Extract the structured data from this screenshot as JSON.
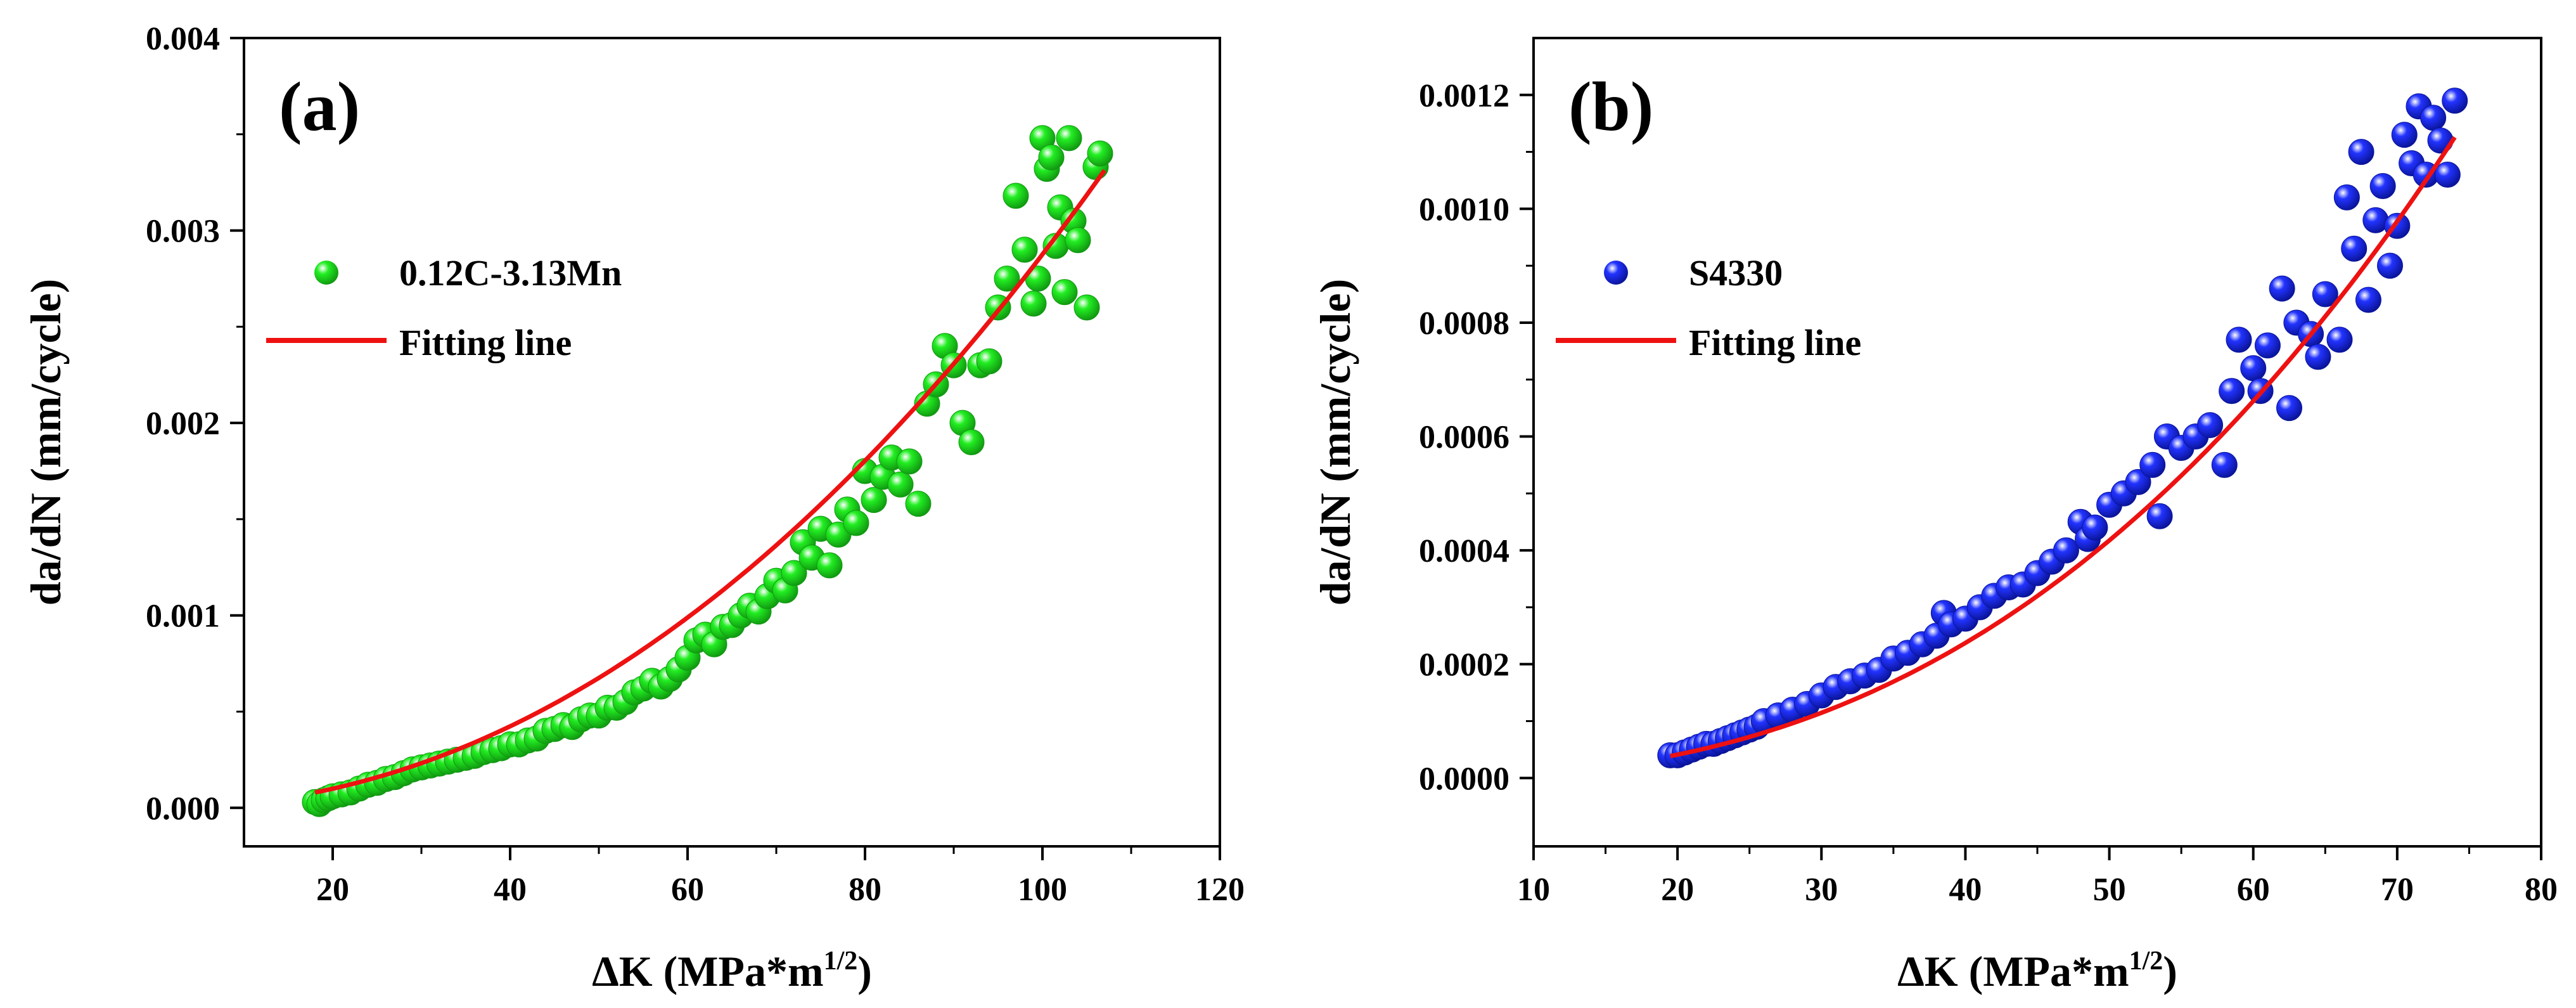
{
  "chart_data": [
    {
      "type": "scatter",
      "panel_label": "(a)",
      "xlabel": "ΔK (MPa*m",
      "xlabel_sup": "1/2",
      "xlabel_close": ")",
      "ylabel": "da/dN (mm/cycle)",
      "xlim": [
        10,
        120
      ],
      "ylim": [
        -0.0002,
        0.004
      ],
      "xticks": [
        20,
        40,
        60,
        80,
        100,
        120
      ],
      "xtick_labels": [
        "20",
        "40",
        "60",
        "80",
        "100",
        "120"
      ],
      "yticks": [
        0,
        0.001,
        0.002,
        0.003,
        0.004
      ],
      "ytick_labels": [
        "0.000",
        "0.001",
        "0.002",
        "0.003",
        "0.004"
      ],
      "legend": {
        "placement": "upper-left",
        "scatter_label": "0.12C-3.13Mn",
        "line_label": "Fitting line"
      },
      "colors": {
        "points": "#22ee22",
        "points_dark": "#119911",
        "fit": "#ee1111"
      },
      "fit": {
        "C": 1.9e-07,
        "m": 2.09,
        "x_range": [
          18,
          107
        ]
      },
      "series": [
        {
          "name": "0.12C-3.13Mn",
          "x": [
            18.0,
            18.5,
            19.0,
            19.5,
            20.0,
            21.0,
            22.0,
            23.0,
            24.0,
            25.0,
            26.0,
            27.0,
            28.0,
            29.0,
            30.0,
            31.0,
            32.0,
            33.0,
            34.0,
            35.0,
            36.0,
            37.0,
            38.0,
            39.0,
            40.0,
            41.0,
            42.0,
            43.0,
            44.0,
            45.0,
            46.0,
            47.0,
            48.0,
            49.0,
            50.0,
            51.0,
            52.0,
            53.0,
            54.0,
            55.0,
            56.0,
            57.0,
            58.0,
            59.0,
            60.0,
            61.0,
            62.0,
            63.0,
            64.0,
            65.0,
            66.0,
            67.0,
            68.0,
            69.0,
            70.0,
            71.0,
            72.0,
            73.0,
            74.0,
            75.0,
            76.0,
            77.0,
            78.0,
            79.0,
            80.0,
            81.0,
            82.0,
            83.0,
            84.0,
            85.0,
            86.0,
            87.0,
            88.0,
            89.0,
            90.0,
            91.0,
            92.0,
            93.0,
            94.0,
            95.0,
            96.0,
            97.0,
            98.0,
            99.0,
            99.5,
            100.0,
            100.5,
            101.0,
            101.5,
            102.0,
            102.5,
            103.0,
            103.5,
            104.0,
            105.0,
            106.0,
            106.5
          ],
          "y": [
            3e-05,
            2e-05,
            4e-05,
            5e-05,
            6e-05,
            7e-05,
            8e-05,
            0.0001,
            0.00012,
            0.00013,
            0.00015,
            0.00016,
            0.00018,
            0.0002,
            0.00021,
            0.00022,
            0.00023,
            0.00024,
            0.00025,
            0.00026,
            0.00027,
            0.00029,
            0.0003,
            0.00031,
            0.00033,
            0.00033,
            0.00035,
            0.00036,
            0.0004,
            0.00041,
            0.00043,
            0.00042,
            0.00046,
            0.00048,
            0.00048,
            0.00052,
            0.00052,
            0.00055,
            0.0006,
            0.00062,
            0.00066,
            0.00063,
            0.00067,
            0.00072,
            0.00078,
            0.00087,
            0.0009,
            0.00085,
            0.00094,
            0.00095,
            0.001,
            0.00105,
            0.00102,
            0.0011,
            0.00118,
            0.00113,
            0.00122,
            0.00138,
            0.0013,
            0.00145,
            0.00126,
            0.00142,
            0.00155,
            0.00148,
            0.00175,
            0.0016,
            0.00172,
            0.00182,
            0.00168,
            0.0018,
            0.00158,
            0.0021,
            0.0022,
            0.0024,
            0.0023,
            0.002,
            0.0019,
            0.0023,
            0.00232,
            0.0026,
            0.00275,
            0.00318,
            0.0029,
            0.00262,
            0.00275,
            0.00348,
            0.00332,
            0.00338,
            0.00292,
            0.00312,
            0.00268,
            0.00348,
            0.00305,
            0.00295,
            0.0026,
            0.00333,
            0.0034
          ]
        }
      ]
    },
    {
      "type": "scatter",
      "panel_label": "(b)",
      "xlabel": "ΔK (MPa*m",
      "xlabel_sup": "1/2",
      "xlabel_close": ")",
      "ylabel": "da/dN (mm/cycle)",
      "xlim": [
        10,
        80
      ],
      "ylim": [
        -0.00012,
        0.0013
      ],
      "xticks": [
        10,
        20,
        30,
        40,
        50,
        60,
        70,
        80
      ],
      "xtick_labels": [
        "10",
        "20",
        "30",
        "40",
        "50",
        "60",
        "70",
        "80"
      ],
      "yticks": [
        0,
        0.0002,
        0.0004,
        0.0006,
        0.0008,
        0.001,
        0.0012
      ],
      "ytick_labels": [
        "0.0000",
        "0.0002",
        "0.0004",
        "0.0006",
        "0.0008",
        "0.0010",
        "0.0012"
      ],
      "legend": {
        "placement": "upper-left",
        "scatter_label": "S4330",
        "line_label": "Fitting line"
      },
      "colors": {
        "points": "#2233ff",
        "points_dark": "#0a1499",
        "fit": "#ee1111"
      },
      "fit": {
        "C": 2.1e-08,
        "m": 2.53,
        "x_range": [
          19.5,
          74
        ]
      },
      "series": [
        {
          "name": "S4330",
          "x": [
            19.5,
            20.0,
            20.5,
            21.0,
            21.5,
            22.0,
            22.5,
            23.0,
            23.5,
            24.0,
            24.5,
            25.0,
            25.5,
            26.0,
            27.0,
            28.0,
            29.0,
            30.0,
            31.0,
            32.0,
            33.0,
            34.0,
            35.0,
            36.0,
            37.0,
            38.0,
            38.5,
            39.0,
            40.0,
            41.0,
            42.0,
            43.0,
            44.0,
            45.0,
            46.0,
            47.0,
            48.0,
            48.5,
            49.0,
            50.0,
            51.0,
            52.0,
            53.0,
            53.5,
            54.0,
            55.0,
            56.0,
            57.0,
            58.0,
            58.5,
            59.0,
            60.0,
            60.5,
            61.0,
            62.0,
            62.5,
            63.0,
            64.0,
            64.5,
            65.0,
            66.0,
            66.5,
            67.0,
            67.5,
            68.0,
            68.5,
            69.0,
            69.5,
            70.0,
            70.5,
            71.0,
            71.5,
            72.0,
            72.5,
            73.0,
            73.5,
            74.0
          ],
          "y": [
            4e-05,
            4e-05,
            4.5e-05,
            5e-05,
            5.5e-05,
            6e-05,
            6e-05,
            6.5e-05,
            7e-05,
            7.5e-05,
            8e-05,
            8.5e-05,
            9e-05,
            0.0001,
            0.00011,
            0.00012,
            0.00013,
            0.000145,
            0.00016,
            0.00017,
            0.00018,
            0.00019,
            0.00021,
            0.00022,
            0.000235,
            0.00025,
            0.00029,
            0.00027,
            0.00028,
            0.0003,
            0.00032,
            0.000335,
            0.00034,
            0.00036,
            0.00038,
            0.0004,
            0.00045,
            0.00042,
            0.00044,
            0.00048,
            0.0005,
            0.00052,
            0.00055,
            0.00046,
            0.0006,
            0.00058,
            0.0006,
            0.00062,
            0.00055,
            0.00068,
            0.00077,
            0.00072,
            0.00068,
            0.00076,
            0.00086,
            0.00065,
            0.0008,
            0.00078,
            0.00074,
            0.00085,
            0.00077,
            0.00102,
            0.00093,
            0.0011,
            0.00084,
            0.00098,
            0.00104,
            0.0009,
            0.00097,
            0.00113,
            0.00108,
            0.00118,
            0.00106,
            0.00116,
            0.00112,
            0.00106,
            0.00119
          ]
        }
      ]
    }
  ]
}
